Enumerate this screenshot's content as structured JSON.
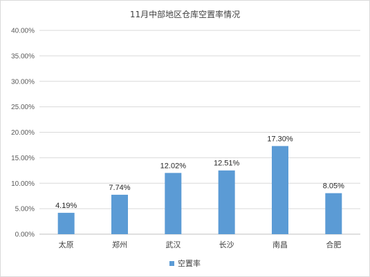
{
  "chart_data": {
    "type": "bar",
    "title": "11月中部地区仓库空置率情况",
    "categories": [
      "太原",
      "郑州",
      "武汉",
      "长沙",
      "南昌",
      "合肥"
    ],
    "series": [
      {
        "name": "空置率",
        "values": [
          4.19,
          7.74,
          12.02,
          12.51,
          17.3,
          8.05
        ],
        "labels": [
          "4.19%",
          "7.74%",
          "12.02%",
          "12.51%",
          "17.30%",
          "8.05%"
        ],
        "color": "#5b9bd5"
      }
    ],
    "ylim": [
      0,
      40
    ],
    "yticks": [
      "0.00%",
      "5.00%",
      "10.00%",
      "15.00%",
      "20.00%",
      "25.00%",
      "30.00%",
      "35.00%",
      "40.00%"
    ],
    "grid": true,
    "legend_position": "bottom"
  }
}
